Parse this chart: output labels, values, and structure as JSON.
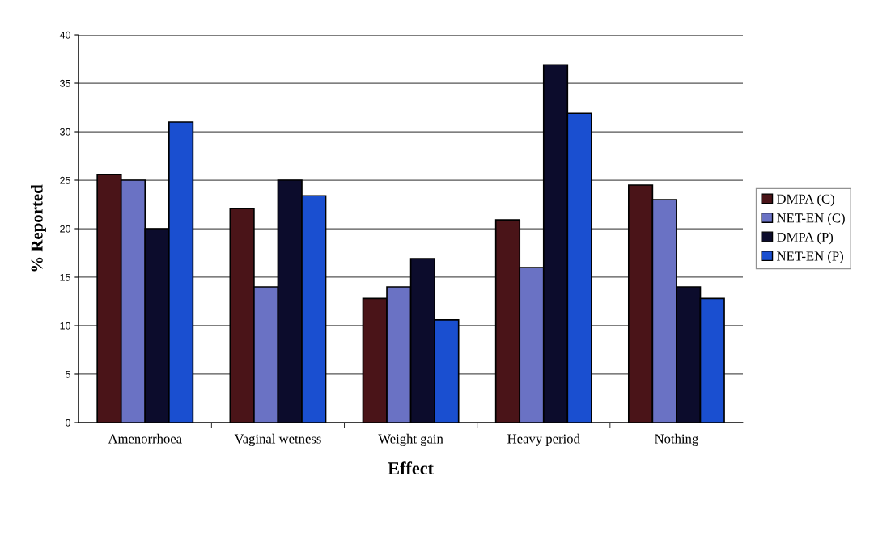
{
  "chart_data": {
    "type": "bar",
    "xlabel": "Effect",
    "ylabel": "% Reported",
    "categories": [
      "Amenorrhoea",
      "Vaginal wetness",
      "Weight gain",
      "Heavy period",
      "Nothing"
    ],
    "series": [
      {
        "name": "DMPA (C)",
        "color": "#4a1418",
        "values": [
          25.6,
          22.1,
          12.8,
          20.9,
          24.5
        ]
      },
      {
        "name": "NET-EN (C)",
        "color": "#6a72c4",
        "values": [
          25,
          14,
          14,
          16,
          23
        ]
      },
      {
        "name": "DMPA (P)",
        "color": "#0c0c2c",
        "values": [
          20,
          25,
          16.9,
          36.9,
          14
        ]
      },
      {
        "name": "NET-EN (P)",
        "color": "#1a4fd0",
        "values": [
          31,
          23.4,
          10.6,
          31.9,
          12.8
        ]
      }
    ],
    "ylim": [
      0,
      40
    ],
    "yticks": [
      0,
      5,
      10,
      15,
      20,
      25,
      30,
      35,
      40
    ],
    "grid": "y",
    "legend": "right"
  }
}
